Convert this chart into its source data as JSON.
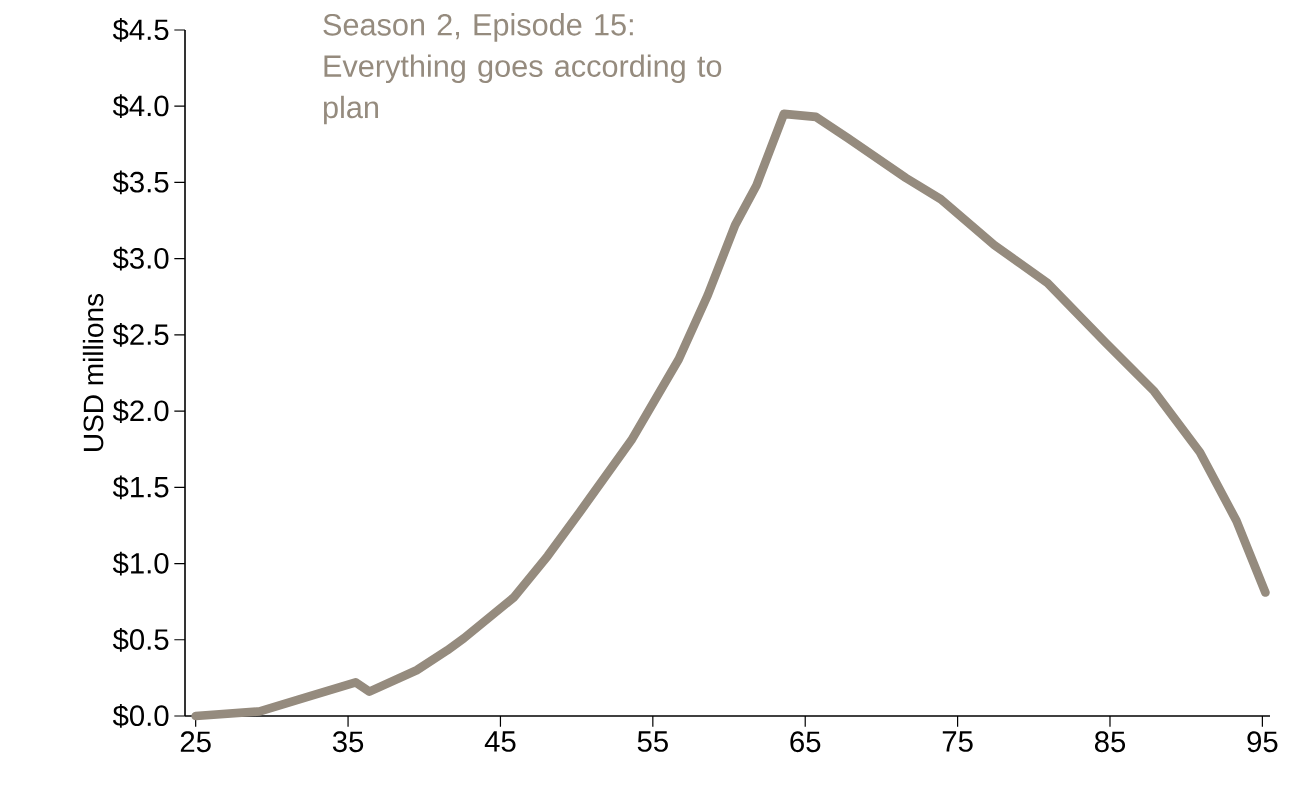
{
  "chart_data": {
    "type": "line",
    "ylabel": "USD millions",
    "annotations": [
      "Season 2, Episode 15: Everything goes according to plan"
    ],
    "x": [
      25,
      29.2,
      32.5,
      35.5,
      36.4,
      39.5,
      41.5,
      42.6,
      45.9,
      48.1,
      50.3,
      53.6,
      56.7,
      58.6,
      60.4,
      61.8,
      63.6,
      65.7,
      67.8,
      71.6,
      73.9,
      77.4,
      80.9,
      84.7,
      87.9,
      90.9,
      93.3,
      95.2
    ],
    "series": [
      {
        "color": "#958b7e",
        "values": [
          0,
          0.03,
          0.13,
          0.22,
          0.16,
          0.3,
          0.43,
          0.51,
          0.78,
          1.05,
          1.35,
          1.81,
          2.34,
          2.76,
          3.22,
          3.48,
          3.95,
          3.93,
          3.79,
          3.53,
          3.39,
          3.09,
          2.84,
          2.45,
          2.13,
          1.73,
          1.28,
          0.81
        ]
      }
    ],
    "xlim": [
      24.3,
      95.5
    ],
    "xticks": [
      25,
      35,
      45,
      55,
      65,
      75,
      85,
      95
    ],
    "ylim": [
      0,
      4.5
    ],
    "yticks": [
      {
        "value": 0,
        "label": "$0.0"
      },
      {
        "value": 0.5,
        "label": "$0.5"
      },
      {
        "value": 1,
        "label": "$1.0"
      },
      {
        "value": 1.5,
        "label": "$1.5"
      },
      {
        "value": 2,
        "label": "$2.0"
      },
      {
        "value": 2.5,
        "label": "$2.5"
      },
      {
        "value": 3,
        "label": "$3.0"
      },
      {
        "value": 3.5,
        "label": "$3.5"
      },
      {
        "value": 4,
        "label": "$4.0"
      },
      {
        "value": 4.5,
        "label": "$4.5"
      }
    ],
    "grid": false,
    "marker": "none",
    "line_style": "solid"
  }
}
